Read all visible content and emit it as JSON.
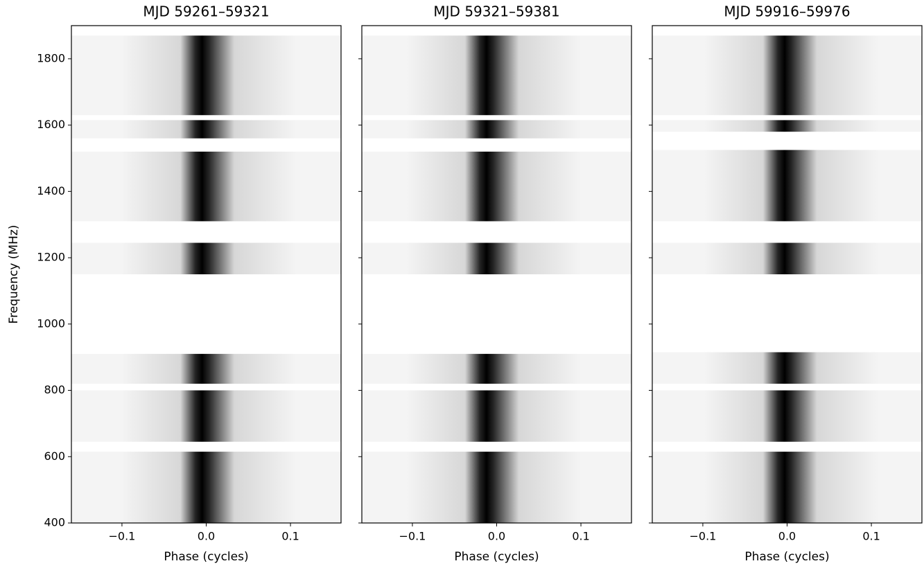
{
  "chart_data": [
    {
      "type": "heatmap",
      "title": "MJD 59261–59321",
      "xlabel": "Phase (cycles)",
      "ylabel": "Frequency (MHz)",
      "xlim": [
        -0.16,
        0.16
      ],
      "ylim": [
        400,
        1900
      ],
      "xticks": [
        {
          "value": -0.1,
          "label": "−0.1"
        },
        {
          "value": 0,
          "label": "0.0"
        },
        0.1
      ],
      "yticks": [
        400,
        600,
        800,
        1000,
        1200,
        1400,
        1600,
        1800
      ],
      "pulse_phase": -0.005,
      "bands": [
        [
          1630,
          1870
        ],
        [
          1560,
          1615
        ],
        [
          1310,
          1520
        ],
        [
          1150,
          1245
        ],
        [
          820,
          910
        ],
        [
          645,
          800
        ],
        [
          400,
          615
        ]
      ]
    },
    {
      "type": "heatmap",
      "title": "MJD 59321–59381",
      "xlabel": "Phase (cycles)",
      "xlim": [
        -0.16,
        0.16
      ],
      "ylim": [
        400,
        1900
      ],
      "xticks": [
        {
          "value": -0.1,
          "label": "−0.1"
        },
        {
          "value": 0,
          "label": "0.0"
        },
        0.1
      ],
      "yticks": [
        400,
        600,
        800,
        1000,
        1200,
        1400,
        1600,
        1800
      ],
      "pulse_phase": -0.012,
      "bands": [
        [
          1630,
          1870
        ],
        [
          1560,
          1615
        ],
        [
          1310,
          1520
        ],
        [
          1150,
          1245
        ],
        [
          820,
          910
        ],
        [
          645,
          800
        ],
        [
          400,
          615
        ]
      ]
    },
    {
      "type": "heatmap",
      "title": "MJD 59916–59976",
      "xlabel": "Phase (cycles)",
      "xlim": [
        -0.16,
        0.16
      ],
      "ylim": [
        400,
        1900
      ],
      "xticks": [
        {
          "value": -0.1,
          "label": "−0.1"
        },
        {
          "value": 0,
          "label": "0.0"
        },
        0.1
      ],
      "yticks": [
        400,
        600,
        800,
        1000,
        1200,
        1400,
        1600,
        1800
      ],
      "pulse_phase": -0.003,
      "bands": [
        [
          1630,
          1870
        ],
        [
          1580,
          1615
        ],
        [
          1310,
          1525
        ],
        [
          1150,
          1245
        ],
        [
          820,
          915
        ],
        [
          645,
          800
        ],
        [
          400,
          615
        ]
      ]
    }
  ]
}
